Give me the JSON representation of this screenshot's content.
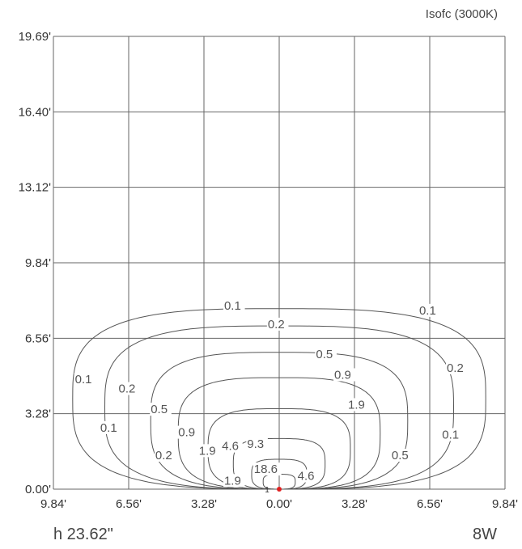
{
  "chart_data": {
    "type": "contour",
    "title": "Isofc (3000K)",
    "footer_left": "h 23.62\"",
    "footer_right": "8W",
    "x_tick_labels": [
      "9.84'",
      "6.56'",
      "3.28'",
      "0.00'",
      "3.28'",
      "6.56'",
      "9.84'"
    ],
    "y_tick_labels": [
      "0.00'",
      "3.28'",
      "6.56'",
      "9.84'",
      "13.12'",
      "16.40'",
      "19.69'"
    ],
    "x_range": [
      -9.84,
      9.84
    ],
    "y_range": [
      0,
      19.69
    ],
    "grid": true,
    "origin_marker_label": "1",
    "origin_marker_color": "#e02020",
    "line_color": "#555555",
    "contours": [
      {
        "level": "0.1",
        "xmin": -9.0,
        "xmax": 9.0,
        "ytop": 7.85
      },
      {
        "level": "0.2",
        "xmin": -7.6,
        "xmax": 7.6,
        "ytop": 7.1
      },
      {
        "level": "0.5",
        "xmin": -5.6,
        "xmax": 5.6,
        "ytop": 5.95
      },
      {
        "level": "0.9",
        "xmin": -4.4,
        "xmax": 4.4,
        "ytop": 4.85
      },
      {
        "level": "1.9",
        "xmin": -3.1,
        "xmax": 3.1,
        "ytop": 3.5
      },
      {
        "level": "4.6",
        "xmin": -2.0,
        "xmax": 2.0,
        "ytop": 2.2
      },
      {
        "level": "9.3",
        "xmin": -1.2,
        "xmax": 1.2,
        "ytop": 1.3
      },
      {
        "level": "18.6",
        "xmin": -0.7,
        "xmax": 0.7,
        "ytop": 0.65
      }
    ],
    "contour_labels": [
      {
        "text": "0.1",
        "x": -2.4,
        "y": 7.8
      },
      {
        "text": "0.1",
        "x": 6.1,
        "y": 7.6
      },
      {
        "text": "0.1",
        "x": -8.9,
        "y": 4.6
      },
      {
        "text": "0.1",
        "x": -7.8,
        "y": 2.5
      },
      {
        "text": "0.1",
        "x": 7.1,
        "y": 2.2
      },
      {
        "text": "0.2",
        "x": -0.5,
        "y": 7.0
      },
      {
        "text": "0.2",
        "x": -7.0,
        "y": 4.2
      },
      {
        "text": "0.2",
        "x": 7.3,
        "y": 5.1
      },
      {
        "text": "0.2",
        "x": -5.4,
        "y": 1.3
      },
      {
        "text": "0.5",
        "x": 1.6,
        "y": 5.7
      },
      {
        "text": "0.5",
        "x": -5.6,
        "y": 3.3
      },
      {
        "text": "0.5",
        "x": 4.9,
        "y": 1.3
      },
      {
        "text": "0.9",
        "x": 2.4,
        "y": 4.8
      },
      {
        "text": "0.9",
        "x": -4.4,
        "y": 2.3
      },
      {
        "text": "1.9",
        "x": 3.0,
        "y": 3.5
      },
      {
        "text": "1.9",
        "x": -3.5,
        "y": 1.5
      },
      {
        "text": "1.9",
        "x": -2.4,
        "y": 0.2
      },
      {
        "text": "4.6",
        "x": -2.5,
        "y": 1.7
      },
      {
        "text": "4.6",
        "x": 0.8,
        "y": 0.4
      },
      {
        "text": "9.3",
        "x": -1.4,
        "y": 1.8
      },
      {
        "text": "18.6",
        "x": -1.1,
        "y": 0.7
      }
    ]
  }
}
